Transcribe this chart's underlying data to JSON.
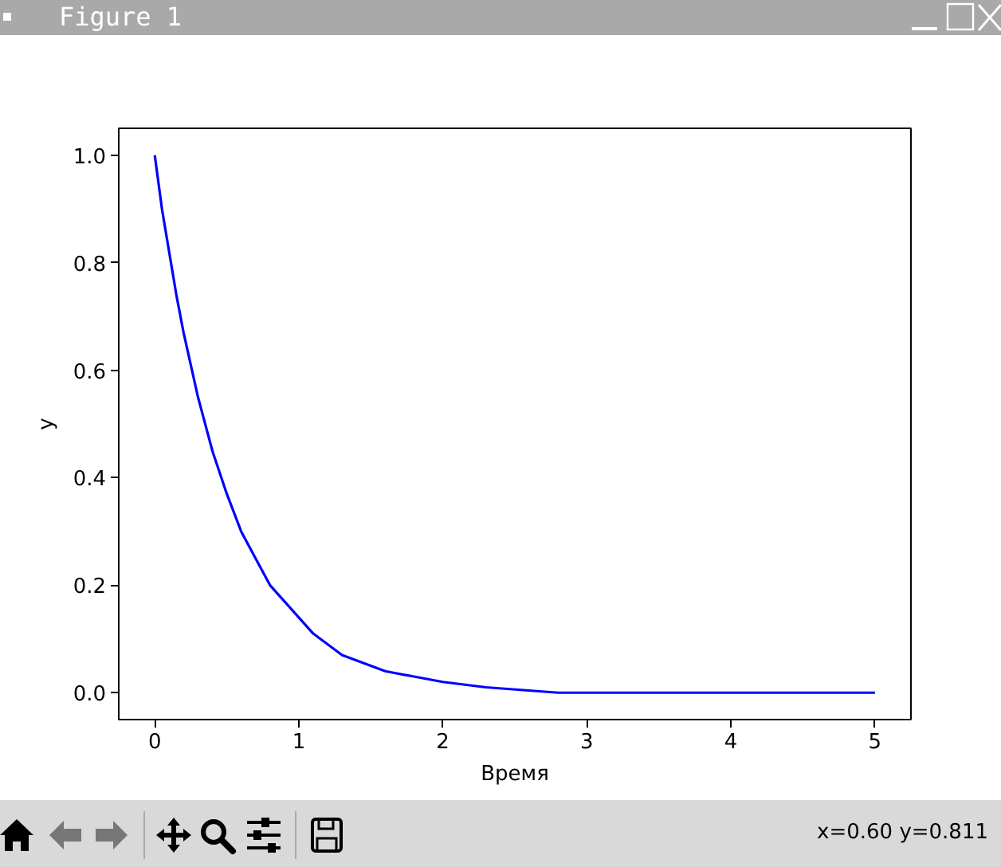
{
  "chart_data": {
    "type": "line",
    "xlabel": "Время",
    "ylabel": "y",
    "x": [
      0,
      0.05,
      0.1,
      0.15,
      0.2,
      0.25,
      0.3,
      0.4,
      0.5,
      0.6,
      0.7,
      0.8,
      0.9,
      1.0,
      1.1,
      1.2,
      1.3,
      1.4,
      1.5,
      1.6,
      1.8,
      2.0,
      2.3,
      2.8,
      3.5,
      4.0,
      4.5,
      5.0
    ],
    "series": [
      {
        "color": "#0000ff",
        "values": [
          1.0,
          0.9,
          0.82,
          0.74,
          0.67,
          0.61,
          0.55,
          0.45,
          0.37,
          0.3,
          0.25,
          0.2,
          0.17,
          0.14,
          0.11,
          0.09,
          0.07,
          0.06,
          0.05,
          0.04,
          0.03,
          0.02,
          0.01,
          0.0,
          0.0,
          0.0,
          0.0,
          0.0
        ]
      }
    ],
    "xlim": [
      -0.25,
      5.25
    ],
    "ylim": [
      -0.05,
      1.05
    ],
    "xticks": [
      0,
      1,
      2,
      3,
      4,
      5
    ],
    "yticks": [
      {
        "value": 0,
        "label": "0.0"
      },
      0.2,
      0.4,
      0.6,
      0.8,
      {
        "value": 1,
        "label": "1.0"
      }
    ],
    "line_style": "solid",
    "annotations": [
      "Figure 1",
      "x=0.60 y=0.811"
    ]
  }
}
